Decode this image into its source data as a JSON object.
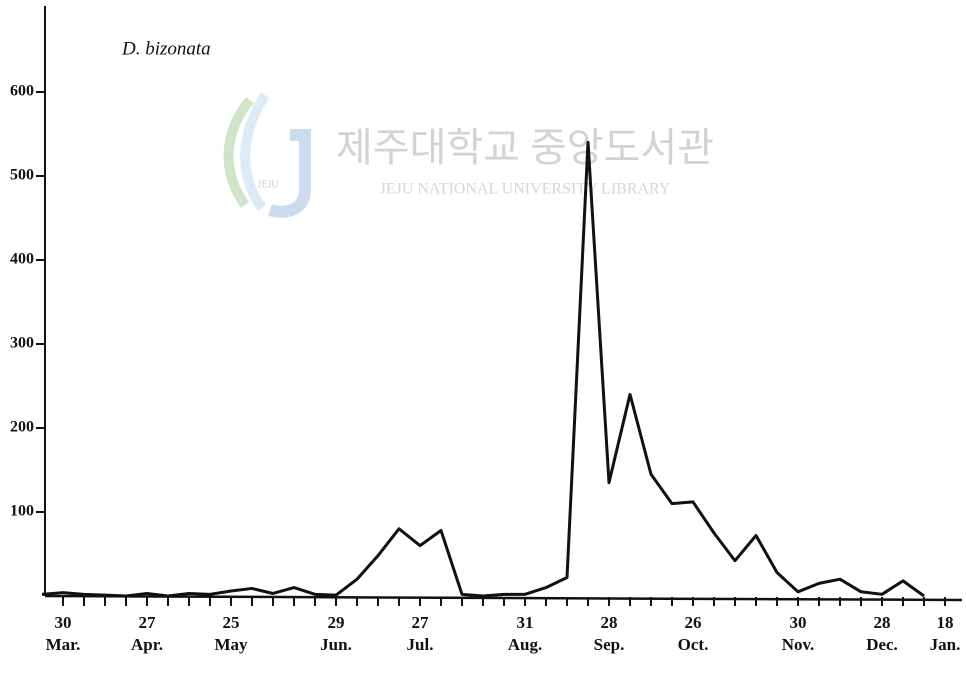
{
  "chart_data": {
    "type": "line",
    "title": "D. bizonata",
    "watermark": {
      "title": "제주대학교 중앙도서관",
      "subtitle": "JEJU NATIONAL UNIVERSITY LIBRARY",
      "logo": "JEJU"
    },
    "categories": [
      null,
      "30\nMar.",
      null,
      null,
      null,
      "27\nApr.",
      null,
      null,
      null,
      "25\nMay",
      null,
      null,
      null,
      null,
      "29\nJun.",
      null,
      null,
      null,
      "27\nJul.",
      null,
      null,
      null,
      null,
      "31\nAug.",
      null,
      null,
      null,
      "28\nSep.",
      null,
      null,
      null,
      "26\nOct.",
      null,
      null,
      null,
      null,
      "30\nNov.",
      null,
      null,
      null,
      "28\nDec.",
      null,
      null,
      "18\nJan."
    ],
    "values": [
      2,
      4,
      2,
      1,
      0,
      3,
      0,
      3,
      2,
      6,
      9,
      3,
      10,
      2,
      1,
      20,
      48,
      80,
      60,
      78,
      2,
      0,
      2,
      2,
      10,
      22,
      540,
      135,
      240,
      145,
      110,
      112,
      75,
      42,
      72,
      28,
      5,
      15,
      20,
      5,
      2,
      18,
      0,
      null
    ],
    "color": "#111111",
    "ylim": [
      0,
      700
    ],
    "yticks": [
      100,
      200,
      300,
      400,
      500,
      600
    ]
  }
}
